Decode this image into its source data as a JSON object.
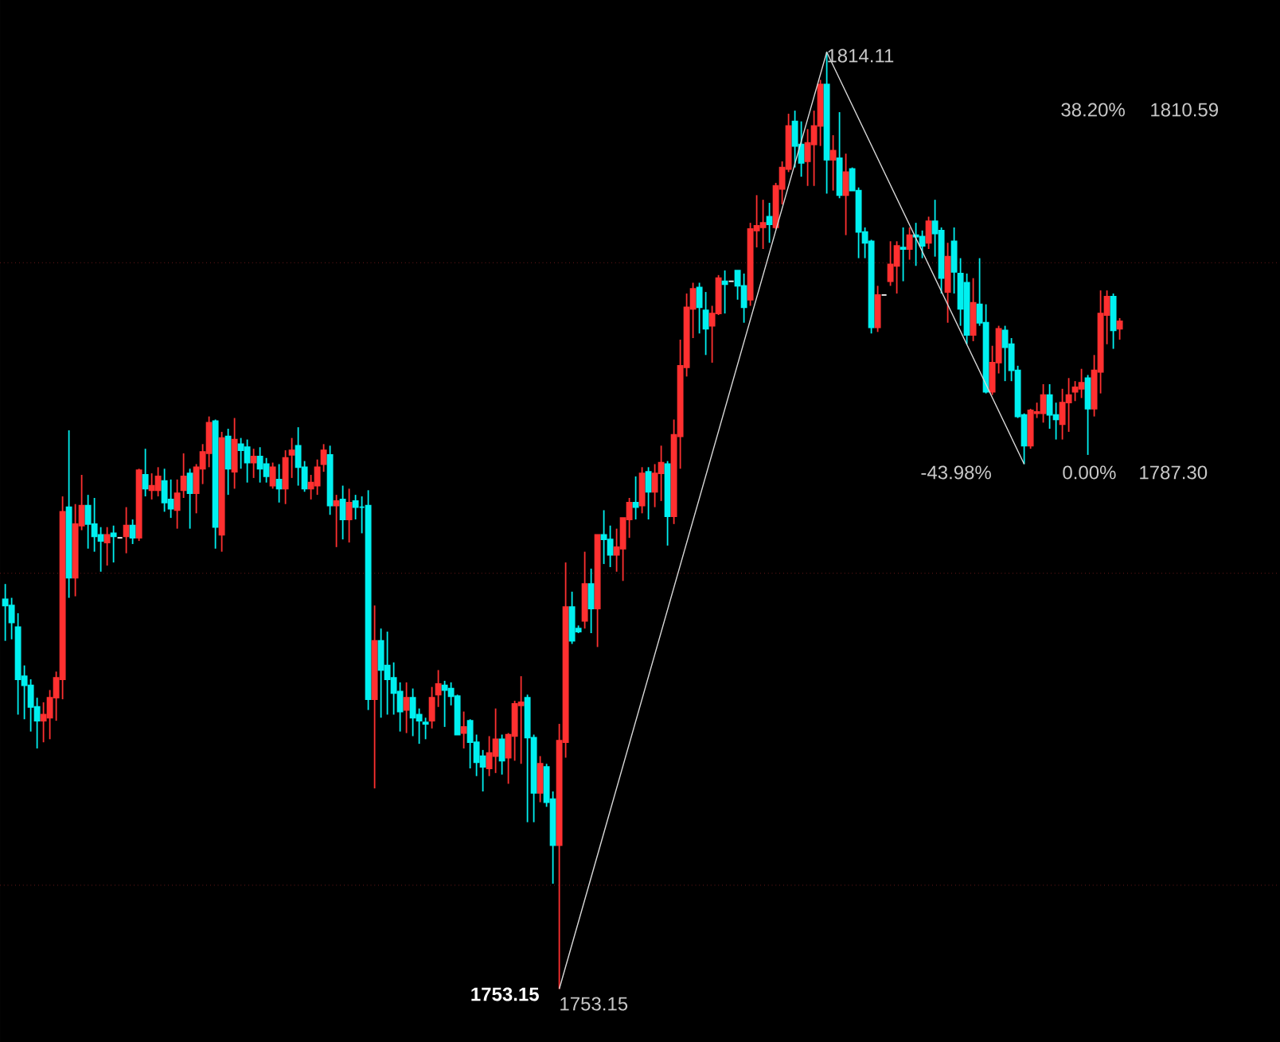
{
  "chart_data": {
    "type": "candlestick",
    "categories": [
      null,
      null,
      null,
      null,
      null,
      null,
      null,
      null,
      null,
      null,
      null,
      null,
      null,
      null,
      null,
      null,
      null,
      null,
      null,
      null,
      null,
      null,
      null,
      null,
      null,
      null,
      null,
      null,
      null,
      null,
      null,
      null,
      null,
      null,
      null,
      null,
      null,
      null,
      null,
      null,
      null,
      null,
      null,
      null,
      null,
      null,
      null,
      null,
      null,
      null,
      null,
      null,
      null,
      null,
      null,
      null,
      null,
      null,
      null,
      null,
      null,
      null,
      null,
      null,
      null,
      null,
      null,
      null,
      null,
      null,
      null,
      null,
      null,
      null,
      null,
      null,
      null,
      null,
      null,
      null,
      null,
      null,
      null,
      null,
      null,
      null,
      null,
      null,
      null,
      null,
      null,
      null,
      null,
      null,
      null,
      null,
      null,
      null,
      null,
      null,
      null,
      null,
      null,
      null,
      null,
      null,
      null,
      null,
      null,
      null,
      null,
      null,
      null,
      null,
      null,
      null,
      null,
      null,
      null,
      null,
      null,
      null,
      null,
      null,
      null,
      null,
      null,
      null,
      null,
      null,
      null,
      null,
      null,
      null,
      null,
      null,
      null,
      null,
      null,
      null,
      null,
      null,
      null,
      null,
      null,
      null,
      null,
      null,
      null,
      null,
      null,
      null,
      null,
      null,
      null,
      null,
      null,
      null,
      null,
      null,
      null,
      null,
      null,
      null,
      null,
      null,
      null,
      null,
      null,
      null,
      null,
      null,
      null,
      null,
      null,
      null
    ],
    "ohlc": [
      [
        1778.5,
        1779.5,
        1775.8,
        1778.1
      ],
      [
        1778.1,
        1778.6,
        1775.9,
        1777.0
      ],
      [
        1776.7,
        1777.6,
        1771.0,
        1773.3
      ],
      [
        1773.5,
        1774.2,
        1770.7,
        1772.9
      ],
      [
        1772.9,
        1773.3,
        1769.9,
        1771.5
      ],
      [
        1771.5,
        1772.1,
        1768.8,
        1770.6
      ],
      [
        1770.6,
        1771.8,
        1769.2,
        1771.0
      ],
      [
        1770.8,
        1772.6,
        1769.4,
        1772.1
      ],
      [
        1772.1,
        1773.8,
        1770.6,
        1773.4
      ],
      [
        1773.3,
        1785.2,
        1772.0,
        1784.2
      ],
      [
        1784.5,
        1789.5,
        1778.6,
        1779.9
      ],
      [
        1779.9,
        1784.7,
        1778.7,
        1783.4
      ],
      [
        1783.3,
        1786.6,
        1783.0,
        1784.6
      ],
      [
        1784.6,
        1785.3,
        1781.8,
        1783.4
      ],
      [
        1783.4,
        1785.1,
        1781.6,
        1782.6
      ],
      [
        1782.7,
        1783.2,
        1780.3,
        1782.3
      ],
      [
        1782.2,
        1783.2,
        1780.7,
        1782.7
      ],
      [
        1782.8,
        1783.3,
        1780.9,
        1782.6
      ],
      [
        1782.5,
        1782.5,
        1782.5,
        1782.5
      ],
      [
        1782.6,
        1784.5,
        1781.5,
        1783.3
      ],
      [
        1783.3,
        1783.7,
        1782.1,
        1782.5
      ],
      [
        1782.5,
        1787.0,
        1782.3,
        1786.9
      ],
      [
        1786.6,
        1788.3,
        1785.2,
        1785.7
      ],
      [
        1785.6,
        1786.7,
        1785.0,
        1785.9
      ],
      [
        1785.6,
        1787.1,
        1785.2,
        1786.5
      ],
      [
        1786.2,
        1787.0,
        1784.2,
        1784.8
      ],
      [
        1785.0,
        1786.3,
        1783.8,
        1784.4
      ],
      [
        1784.3,
        1786.3,
        1783.1,
        1785.4
      ],
      [
        1785.6,
        1788.0,
        1785.1,
        1786.5
      ],
      [
        1786.7,
        1787.0,
        1783.1,
        1785.4
      ],
      [
        1785.4,
        1787.3,
        1784.1,
        1787.1
      ],
      [
        1787.0,
        1788.6,
        1786.0,
        1788.1
      ],
      [
        1788.0,
        1790.4,
        1787.1,
        1790.0
      ],
      [
        1790.1,
        1790.2,
        1781.8,
        1783.2
      ],
      [
        1782.7,
        1789.4,
        1781.6,
        1789.0
      ],
      [
        1789.1,
        1789.6,
        1785.3,
        1787.0
      ],
      [
        1786.8,
        1790.3,
        1785.7,
        1788.9
      ],
      [
        1788.6,
        1789.0,
        1787.0,
        1788.2
      ],
      [
        1788.4,
        1788.9,
        1786.1,
        1787.4
      ],
      [
        1787.4,
        1788.3,
        1786.4,
        1787.8
      ],
      [
        1787.8,
        1788.4,
        1786.1,
        1787.0
      ],
      [
        1787.3,
        1787.7,
        1786.1,
        1786.5
      ],
      [
        1785.9,
        1787.4,
        1785.7,
        1787.1
      ],
      [
        1786.3,
        1787.3,
        1784.8,
        1785.7
      ],
      [
        1785.7,
        1788.2,
        1784.7,
        1787.7
      ],
      [
        1787.9,
        1789.0,
        1786.4,
        1788.2
      ],
      [
        1788.5,
        1789.7,
        1785.9,
        1787.1
      ],
      [
        1787.1,
        1787.5,
        1785.5,
        1785.7
      ],
      [
        1785.7,
        1786.6,
        1785.0,
        1786.1
      ],
      [
        1785.9,
        1787.6,
        1785.3,
        1787.1
      ],
      [
        1787.3,
        1788.6,
        1786.8,
        1788.2
      ],
      [
        1787.9,
        1788.5,
        1784.0,
        1784.6
      ],
      [
        1784.6,
        1785.3,
        1781.9,
        1784.9
      ],
      [
        1785.0,
        1785.9,
        1782.4,
        1783.7
      ],
      [
        1783.7,
        1785.7,
        1782.2,
        1784.8
      ],
      [
        1784.9,
        1785.3,
        1783.7,
        1784.5
      ],
      [
        1784.5,
        1785.2,
        1782.8,
        1784.5
      ],
      [
        1784.6,
        1785.6,
        1771.3,
        1772.0
      ],
      [
        1772.0,
        1778.1,
        1766.2,
        1775.8
      ],
      [
        1775.8,
        1776.6,
        1770.8,
        1773.9
      ],
      [
        1774.2,
        1776.4,
        1771.0,
        1773.3
      ],
      [
        1773.4,
        1774.4,
        1771.0,
        1772.4
      ],
      [
        1772.5,
        1773.1,
        1769.9,
        1771.2
      ],
      [
        1771.3,
        1773.1,
        1769.8,
        1772.1
      ],
      [
        1772.1,
        1772.7,
        1769.6,
        1770.8
      ],
      [
        1771.0,
        1771.4,
        1769.1,
        1770.6
      ],
      [
        1770.5,
        1770.8,
        1769.4,
        1770.4
      ],
      [
        1770.6,
        1772.8,
        1770.1,
        1772.1
      ],
      [
        1772.3,
        1773.9,
        1771.5,
        1773.0
      ],
      [
        1772.9,
        1773.2,
        1770.2,
        1772.6
      ],
      [
        1772.7,
        1773.1,
        1771.6,
        1772.2
      ],
      [
        1772.2,
        1772.3,
        1769.7,
        1769.7
      ],
      [
        1769.8,
        1771.2,
        1768.8,
        1770.2
      ],
      [
        1770.6,
        1770.7,
        1767.5,
        1769.2
      ],
      [
        1769.2,
        1769.7,
        1767.0,
        1767.9
      ],
      [
        1768.3,
        1768.7,
        1766.0,
        1767.6
      ],
      [
        1767.5,
        1769.6,
        1767.0,
        1768.5
      ],
      [
        1768.3,
        1771.4,
        1767.2,
        1769.4
      ],
      [
        1769.4,
        1769.7,
        1767.1,
        1768.0
      ],
      [
        1768.2,
        1769.8,
        1766.5,
        1769.7
      ],
      [
        1769.6,
        1771.9,
        1768.0,
        1771.7
      ],
      [
        1771.6,
        1773.5,
        1767.8,
        1771.8
      ],
      [
        1772.1,
        1772.3,
        1764.0,
        1769.5
      ],
      [
        1769.5,
        1769.7,
        1764.0,
        1765.9
      ],
      [
        1765.9,
        1768.3,
        1765.3,
        1767.8
      ],
      [
        1767.6,
        1767.8,
        1765.0,
        1765.3
      ],
      [
        1765.5,
        1766.0,
        1760.0,
        1762.5
      ],
      [
        1762.5,
        1770.4,
        1753.15,
        1769.3
      ],
      [
        1769.2,
        1780.9,
        1768.2,
        1778.0
      ],
      [
        1778.0,
        1779.0,
        1775.6,
        1775.8
      ],
      [
        1776.6,
        1776.8,
        1776.3,
        1776.4
      ],
      [
        1777.1,
        1781.6,
        1776.6,
        1779.5
      ],
      [
        1779.5,
        1780.5,
        1776.3,
        1777.9
      ],
      [
        1777.9,
        1782.7,
        1775.4,
        1782.7
      ],
      [
        1782.7,
        1784.3,
        1780.8,
        1782.4
      ],
      [
        1782.4,
        1783.3,
        1780.6,
        1781.4
      ],
      [
        1781.4,
        1783.1,
        1780.3,
        1781.9
      ],
      [
        1781.8,
        1783.8,
        1779.7,
        1783.8
      ],
      [
        1783.7,
        1785.1,
        1782.5,
        1784.8
      ],
      [
        1784.8,
        1786.5,
        1783.7,
        1784.5
      ],
      [
        1784.6,
        1787.1,
        1784.1,
        1786.7
      ],
      [
        1786.8,
        1787.1,
        1783.7,
        1785.5
      ],
      [
        1785.5,
        1787.3,
        1784.5,
        1786.7
      ],
      [
        1786.7,
        1788.5,
        1784.9,
        1787.4
      ],
      [
        1787.3,
        1787.5,
        1782.0,
        1783.9
      ],
      [
        1783.9,
        1790.2,
        1783.4,
        1789.2
      ],
      [
        1789.1,
        1795.4,
        1787.0,
        1793.7
      ],
      [
        1793.6,
        1798.4,
        1793.0,
        1797.5
      ],
      [
        1797.4,
        1799.1,
        1795.5,
        1798.7
      ],
      [
        1798.8,
        1799.1,
        1795.8,
        1797.5
      ],
      [
        1797.3,
        1798.5,
        1794.4,
        1796.1
      ],
      [
        1796.3,
        1797.6,
        1793.9,
        1797.1
      ],
      [
        1797.1,
        1799.6,
        1797.0,
        1799.4
      ],
      [
        1799.2,
        1799.9,
        1797.1,
        1799.0
      ],
      [
        1799.2,
        1799.2,
        1799.2,
        1799.2
      ],
      [
        1799.9,
        1799.9,
        1798.0,
        1798.9
      ],
      [
        1798.9,
        1799.7,
        1796.5,
        1797.5
      ],
      [
        1798.0,
        1803.0,
        1797.6,
        1802.6
      ],
      [
        1802.5,
        1804.8,
        1801.4,
        1802.8
      ],
      [
        1802.7,
        1804.5,
        1801.3,
        1803.0
      ],
      [
        1803.4,
        1804.3,
        1801.7,
        1802.9
      ],
      [
        1802.7,
        1805.6,
        1802.6,
        1805.4
      ],
      [
        1805.2,
        1807.0,
        1804.2,
        1806.6
      ],
      [
        1806.5,
        1810.1,
        1806.3,
        1809.3
      ],
      [
        1809.6,
        1810.3,
        1806.6,
        1808.0
      ],
      [
        1808.1,
        1809.6,
        1806.0,
        1806.9
      ],
      [
        1807.0,
        1809.1,
        1805.4,
        1808.2
      ],
      [
        1808.1,
        1810.3,
        1805.4,
        1809.3
      ],
      [
        1809.3,
        1812.3,
        1808.0,
        1812.0
      ],
      [
        1812.0,
        1814.11,
        1804.9,
        1807.1
      ],
      [
        1807.1,
        1808.7,
        1805.1,
        1807.7
      ],
      [
        1807.2,
        1810.2,
        1804.6,
        1804.8
      ],
      [
        1804.8,
        1807.5,
        1802.2,
        1806.3
      ],
      [
        1806.5,
        1806.6,
        1805.1,
        1805.1
      ],
      [
        1805.1,
        1805.3,
        1800.7,
        1802.4
      ],
      [
        1802.4,
        1802.7,
        1800.7,
        1801.7
      ],
      [
        1801.8,
        1801.9,
        1795.8,
        1796.2
      ],
      [
        1796.2,
        1798.9,
        1795.9,
        1798.3
      ],
      [
        1798.3,
        1798.3,
        1798.3,
        1798.3
      ],
      [
        1799.2,
        1801.8,
        1798.9,
        1800.3
      ],
      [
        1800.2,
        1801.8,
        1798.4,
        1801.5
      ],
      [
        1801.4,
        1802.7,
        1799.2,
        1801.3
      ],
      [
        1801.3,
        1802.7,
        1800.6,
        1802.2
      ],
      [
        1802.2,
        1803.0,
        1800.2,
        1802.1
      ],
      [
        1802.1,
        1802.5,
        1800.7,
        1801.5
      ],
      [
        1801.7,
        1803.4,
        1801.3,
        1803.1
      ],
      [
        1803.1,
        1804.5,
        1800.8,
        1802.3
      ],
      [
        1802.5,
        1802.7,
        1798.4,
        1799.4
      ],
      [
        1798.5,
        1801.7,
        1796.5,
        1800.8
      ],
      [
        1801.8,
        1802.7,
        1798.4,
        1799.8
      ],
      [
        1799.7,
        1800.7,
        1796.3,
        1797.4
      ],
      [
        1799.1,
        1799.7,
        1795.1,
        1795.7
      ],
      [
        1795.7,
        1799.4,
        1795.3,
        1797.8
      ],
      [
        1797.7,
        1800.7,
        1796.3,
        1796.5
      ],
      [
        1796.5,
        1797.7,
        1791.9,
        1792.0
      ],
      [
        1792.0,
        1795.0,
        1791.8,
        1793.9
      ],
      [
        1793.9,
        1796.3,
        1793.2,
        1796.1
      ],
      [
        1796.0,
        1796.3,
        1792.7,
        1794.9
      ],
      [
        1795.1,
        1795.5,
        1792.7,
        1793.4
      ],
      [
        1793.4,
        1793.7,
        1790.3,
        1790.4
      ],
      [
        1790.5,
        1790.6,
        1787.3,
        1788.5
      ],
      [
        1788.5,
        1790.9,
        1788.3,
        1790.8
      ],
      [
        1790.6,
        1791.3,
        1790.3,
        1790.7
      ],
      [
        1790.6,
        1792.5,
        1790.0,
        1791.8
      ],
      [
        1791.8,
        1792.5,
        1789.6,
        1790.5
      ],
      [
        1790.5,
        1791.3,
        1788.9,
        1790.2
      ],
      [
        1789.9,
        1792.2,
        1788.9,
        1791.3
      ],
      [
        1791.3,
        1792.9,
        1789.4,
        1791.8
      ],
      [
        1792.0,
        1792.7,
        1791.4,
        1792.3
      ],
      [
        1792.2,
        1793.5,
        1791.6,
        1792.6
      ],
      [
        1792.9,
        1793.1,
        1787.9,
        1790.9
      ],
      [
        1790.9,
        1794.4,
        1790.4,
        1793.4
      ],
      [
        1793.3,
        1798.6,
        1791.9,
        1797.1
      ],
      [
        1797.0,
        1798.6,
        1795.1,
        1798.2
      ],
      [
        1798.2,
        1798.4,
        1794.8,
        1796.0
      ],
      [
        1796.1,
        1796.8,
        1795.4,
        1796.6
      ]
    ],
    "colors": [
      "#00f0f0",
      "#00f0f0",
      "#00f0f0",
      "#00f0f0",
      "#00f0f0",
      "#00f0f0",
      "#ff3030",
      "#ff3030",
      "#ff3030",
      "#ff3030",
      "#00f0f0",
      "#ff3030",
      "#ff3030",
      "#00f0f0",
      "#00f0f0",
      "#00f0f0",
      "#ff3030",
      "#00f0f0",
      "#ffffff",
      "#ff3030",
      "#00f0f0",
      "#ff3030",
      "#00f0f0",
      "#ff3030",
      "#ff3030",
      "#00f0f0",
      "#00f0f0",
      "#ff3030",
      "#ff3030",
      "#00f0f0",
      "#ff3030",
      "#ff3030",
      "#ff3030",
      "#00f0f0",
      "#ff3030",
      "#00f0f0",
      "#ff3030",
      "#00f0f0",
      "#00f0f0",
      "#ff3030",
      "#00f0f0",
      "#00f0f0",
      "#ff3030",
      "#00f0f0",
      "#ff3030",
      "#ff3030",
      "#00f0f0",
      "#00f0f0",
      "#ff3030",
      "#ff3030",
      "#ff3030",
      "#00f0f0",
      "#ff3030",
      "#00f0f0",
      "#ff3030",
      "#00f0f0",
      "#00f0f0",
      "#00f0f0",
      "#ff3030",
      "#00f0f0",
      "#00f0f0",
      "#00f0f0",
      "#00f0f0",
      "#ff3030",
      "#00f0f0",
      "#00f0f0",
      "#00f0f0",
      "#ff3030",
      "#ff3030",
      "#00f0f0",
      "#00f0f0",
      "#00f0f0",
      "#ff3030",
      "#00f0f0",
      "#00f0f0",
      "#00f0f0",
      "#ff3030",
      "#ff3030",
      "#00f0f0",
      "#ff3030",
      "#ff3030",
      "#ff3030",
      "#00f0f0",
      "#00f0f0",
      "#ff3030",
      "#00f0f0",
      "#00f0f0",
      "#ff3030",
      "#ff3030",
      "#00f0f0",
      "#00f0f0",
      "#ff3030",
      "#00f0f0",
      "#ff3030",
      "#00f0f0",
      "#00f0f0",
      "#ff3030",
      "#ff3030",
      "#ff3030",
      "#00f0f0",
      "#ff3030",
      "#00f0f0",
      "#ff3030",
      "#ff3030",
      "#00f0f0",
      "#ff3030",
      "#ff3030",
      "#ff3030",
      "#ff3030",
      "#00f0f0",
      "#00f0f0",
      "#ff3030",
      "#ff3030",
      "#00f0f0",
      "#ffffff",
      "#00f0f0",
      "#00f0f0",
      "#ff3030",
      "#ff3030",
      "#ff3030",
      "#00f0f0",
      "#ff3030",
      "#ff3030",
      "#ff3030",
      "#00f0f0",
      "#00f0f0",
      "#ff3030",
      "#ff3030",
      "#ff3030",
      "#00f0f0",
      "#ff3030",
      "#00f0f0",
      "#ff3030",
      "#00f0f0",
      "#00f0f0",
      "#00f0f0",
      "#00f0f0",
      "#ff3030",
      "#ffffff",
      "#ff3030",
      "#ff3030",
      "#00f0f0",
      "#ff3030",
      "#00f0f0",
      "#00f0f0",
      "#ff3030",
      "#00f0f0",
      "#00f0f0",
      "#ff3030",
      "#00f0f0",
      "#00f0f0",
      "#00f0f0",
      "#ff3030",
      "#00f0f0",
      "#00f0f0",
      "#ff3030",
      "#ff3030",
      "#00f0f0",
      "#00f0f0",
      "#00f0f0",
      "#00f0f0",
      "#ff3030",
      "#ff3030",
      "#ff3030",
      "#00f0f0",
      "#00f0f0",
      "#ff3030",
      "#ff3030",
      "#ff3030",
      "#ff3030",
      "#00f0f0",
      "#ff3030",
      "#ff3030",
      "#ff3030",
      "#00f0f0",
      "#ff3030"
    ],
    "series": [
      {
        "type": "line",
        "color": "#d8d8d8",
        "values": [
          null,
          null,
          null,
          null,
          null,
          null,
          null,
          null,
          null,
          null,
          null,
          null,
          null,
          null,
          null,
          null,
          null,
          null,
          null,
          null,
          null,
          null,
          null,
          null,
          null,
          null,
          null,
          null,
          null,
          null,
          null,
          null,
          null,
          null,
          null,
          null,
          null,
          null,
          null,
          null,
          null,
          null,
          null,
          null,
          null,
          null,
          null,
          null,
          null,
          null,
          null,
          null,
          null,
          null,
          null,
          null,
          null,
          null,
          null,
          null,
          null,
          null,
          null,
          null,
          null,
          null,
          null,
          null,
          null,
          null,
          null,
          null,
          null,
          null,
          null,
          null,
          null,
          null,
          null,
          null,
          null,
          null,
          null,
          null,
          null,
          null,
          null,
          1753.15,
          null,
          null,
          null,
          null,
          null,
          null,
          null,
          null,
          null,
          null,
          null,
          null,
          null,
          null,
          null,
          null,
          null,
          null,
          null,
          null,
          null,
          null,
          null,
          null,
          null,
          null,
          null,
          null,
          null,
          null,
          null,
          null,
          null,
          null,
          null,
          null,
          null,
          null,
          null,
          null,
          null,
          1814.11,
          null,
          null,
          null,
          null,
          null,
          null,
          null,
          null,
          null,
          null,
          null,
          null,
          null,
          null,
          null,
          null,
          null,
          null,
          null,
          null,
          null,
          null,
          null,
          null,
          null,
          null,
          null,
          null,
          null,
          null,
          1787.3,
          null,
          null,
          null,
          null,
          null,
          null,
          null,
          null,
          null,
          null,
          null,
          null,
          null,
          null,
          null
        ]
      }
    ],
    "ylim": [
      1749.7,
      1817.5
    ],
    "yticks": [
      {
        "value": 1759.9,
        "label": null
      },
      {
        "value": 1780.2,
        "label": null
      },
      {
        "value": 1800.4,
        "label": null
      }
    ],
    "grid": "y",
    "annotations": [
      "1814.11",
      "38.20%",
      "1810.59",
      "-43.98%",
      "0.00%",
      "1787.30",
      "1753.15",
      "1753.15"
    ]
  }
}
